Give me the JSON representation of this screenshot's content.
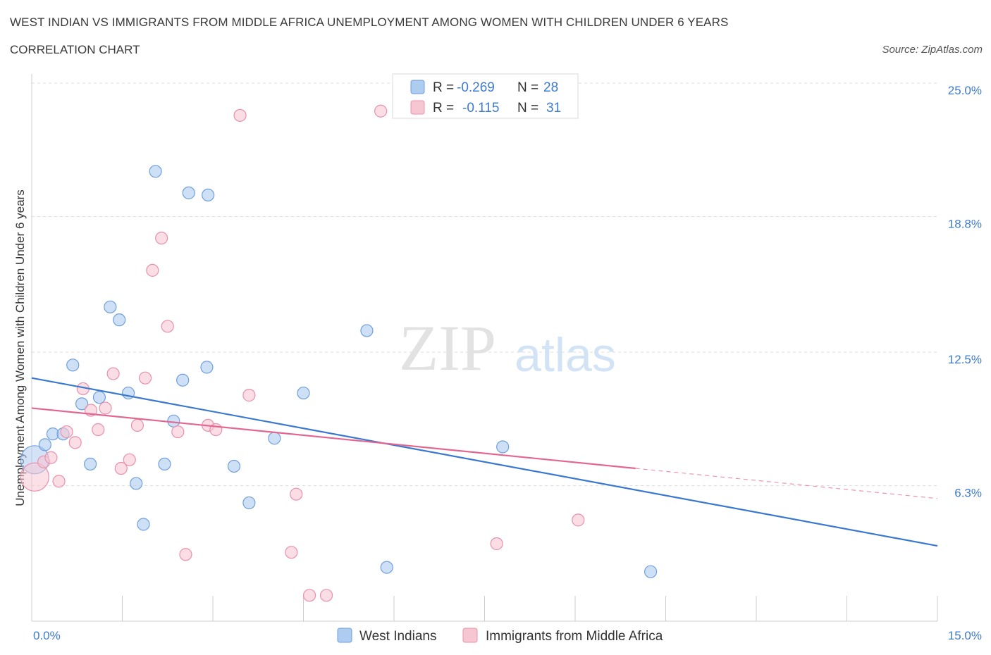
{
  "header": {
    "title": "WEST INDIAN VS IMMIGRANTS FROM MIDDLE AFRICA UNEMPLOYMENT AMONG WOMEN WITH CHILDREN UNDER 6 YEARS",
    "subtitle": "CORRELATION CHART",
    "source": "Source: ZipAtlas.com"
  },
  "watermark": {
    "zip": "ZIP",
    "atlas": "atlas"
  },
  "legend_box": {
    "rows": [
      {
        "r_label": "R =",
        "r_value": "-0.269",
        "n_label": "N =",
        "n_value": "28"
      },
      {
        "r_label": "R =",
        "r_value": "-0.115",
        "n_label": "N =",
        "n_value": "31"
      }
    ]
  },
  "chart_data": {
    "type": "scatter",
    "title": "WEST INDIAN VS IMMIGRANTS FROM MIDDLE AFRICA UNEMPLOYMENT AMONG WOMEN WITH CHILDREN UNDER 6 YEARS",
    "xlabel": "",
    "ylabel": "Unemployment Among Women with Children Under 6 years",
    "xlim": [
      0,
      15
    ],
    "ylim": [
      0,
      25
    ],
    "x_tick_labels": [
      "0.0%",
      "15.0%"
    ],
    "y_ticks": [
      6.3,
      12.5,
      18.8,
      25.0
    ],
    "y_tick_labels": [
      "6.3%",
      "12.5%",
      "18.8%",
      "25.0%"
    ],
    "grid": true,
    "legend_position": "bottom",
    "series": [
      {
        "name": "West Indians",
        "color": "#aecbf0",
        "edge_color": "#6f9fdc",
        "line_color": "#3a78d0",
        "trend": {
          "x": [
            0,
            15
          ],
          "y": [
            11.3,
            3.5
          ]
        },
        "points": [
          {
            "x": 0.05,
            "y": 7.5,
            "big": true
          },
          {
            "x": 0.22,
            "y": 8.2
          },
          {
            "x": 0.35,
            "y": 8.7
          },
          {
            "x": 0.52,
            "y": 8.7
          },
          {
            "x": 0.68,
            "y": 11.9
          },
          {
            "x": 0.83,
            "y": 10.1
          },
          {
            "x": 0.97,
            "y": 7.3
          },
          {
            "x": 1.12,
            "y": 10.4
          },
          {
            "x": 1.3,
            "y": 14.6
          },
          {
            "x": 1.45,
            "y": 14.0
          },
          {
            "x": 1.6,
            "y": 10.6
          },
          {
            "x": 1.73,
            "y": 6.4
          },
          {
            "x": 1.85,
            "y": 4.5
          },
          {
            "x": 2.05,
            "y": 20.9
          },
          {
            "x": 2.2,
            "y": 7.3
          },
          {
            "x": 2.35,
            "y": 9.3
          },
          {
            "x": 2.5,
            "y": 11.2
          },
          {
            "x": 2.6,
            "y": 19.9
          },
          {
            "x": 2.9,
            "y": 11.8
          },
          {
            "x": 2.92,
            "y": 19.8
          },
          {
            "x": 3.35,
            "y": 7.2
          },
          {
            "x": 3.6,
            "y": 5.5
          },
          {
            "x": 4.02,
            "y": 8.5
          },
          {
            "x": 4.5,
            "y": 10.6
          },
          {
            "x": 5.55,
            "y": 13.5
          },
          {
            "x": 5.88,
            "y": 2.5
          },
          {
            "x": 7.8,
            "y": 8.1
          },
          {
            "x": 10.25,
            "y": 2.3
          }
        ]
      },
      {
        "name": "Immigrants from Middle Africa",
        "color": "#f7c6d3",
        "edge_color": "#e891ab",
        "line_color": "#e2668f",
        "trend": {
          "x": [
            0,
            10
          ],
          "y": [
            9.9,
            7.1
          ]
        },
        "trend_dashed": {
          "x": [
            10,
            15
          ],
          "y": [
            7.1,
            5.7
          ]
        },
        "points": [
          {
            "x": 0.05,
            "y": 6.7,
            "big": true
          },
          {
            "x": 0.2,
            "y": 7.4
          },
          {
            "x": 0.32,
            "y": 7.6
          },
          {
            "x": 0.45,
            "y": 6.5
          },
          {
            "x": 0.58,
            "y": 8.8
          },
          {
            "x": 0.72,
            "y": 8.3
          },
          {
            "x": 0.85,
            "y": 10.8
          },
          {
            "x": 0.98,
            "y": 9.8
          },
          {
            "x": 1.1,
            "y": 8.9
          },
          {
            "x": 1.22,
            "y": 9.9
          },
          {
            "x": 1.35,
            "y": 11.5
          },
          {
            "x": 1.48,
            "y": 7.1
          },
          {
            "x": 1.62,
            "y": 7.5
          },
          {
            "x": 1.75,
            "y": 9.1
          },
          {
            "x": 1.88,
            "y": 11.3
          },
          {
            "x": 2.0,
            "y": 16.3
          },
          {
            "x": 2.15,
            "y": 17.8
          },
          {
            "x": 2.25,
            "y": 13.7
          },
          {
            "x": 2.42,
            "y": 8.8
          },
          {
            "x": 2.55,
            "y": 3.1
          },
          {
            "x": 2.92,
            "y": 9.1
          },
          {
            "x": 3.05,
            "y": 8.9
          },
          {
            "x": 3.45,
            "y": 23.5
          },
          {
            "x": 3.6,
            "y": 10.5
          },
          {
            "x": 4.3,
            "y": 3.2
          },
          {
            "x": 4.38,
            "y": 5.9
          },
          {
            "x": 4.6,
            "y": 1.2
          },
          {
            "x": 4.88,
            "y": 1.2
          },
          {
            "x": 5.78,
            "y": 23.7
          },
          {
            "x": 7.7,
            "y": 3.6
          },
          {
            "x": 9.05,
            "y": 4.7
          }
        ]
      }
    ]
  }
}
